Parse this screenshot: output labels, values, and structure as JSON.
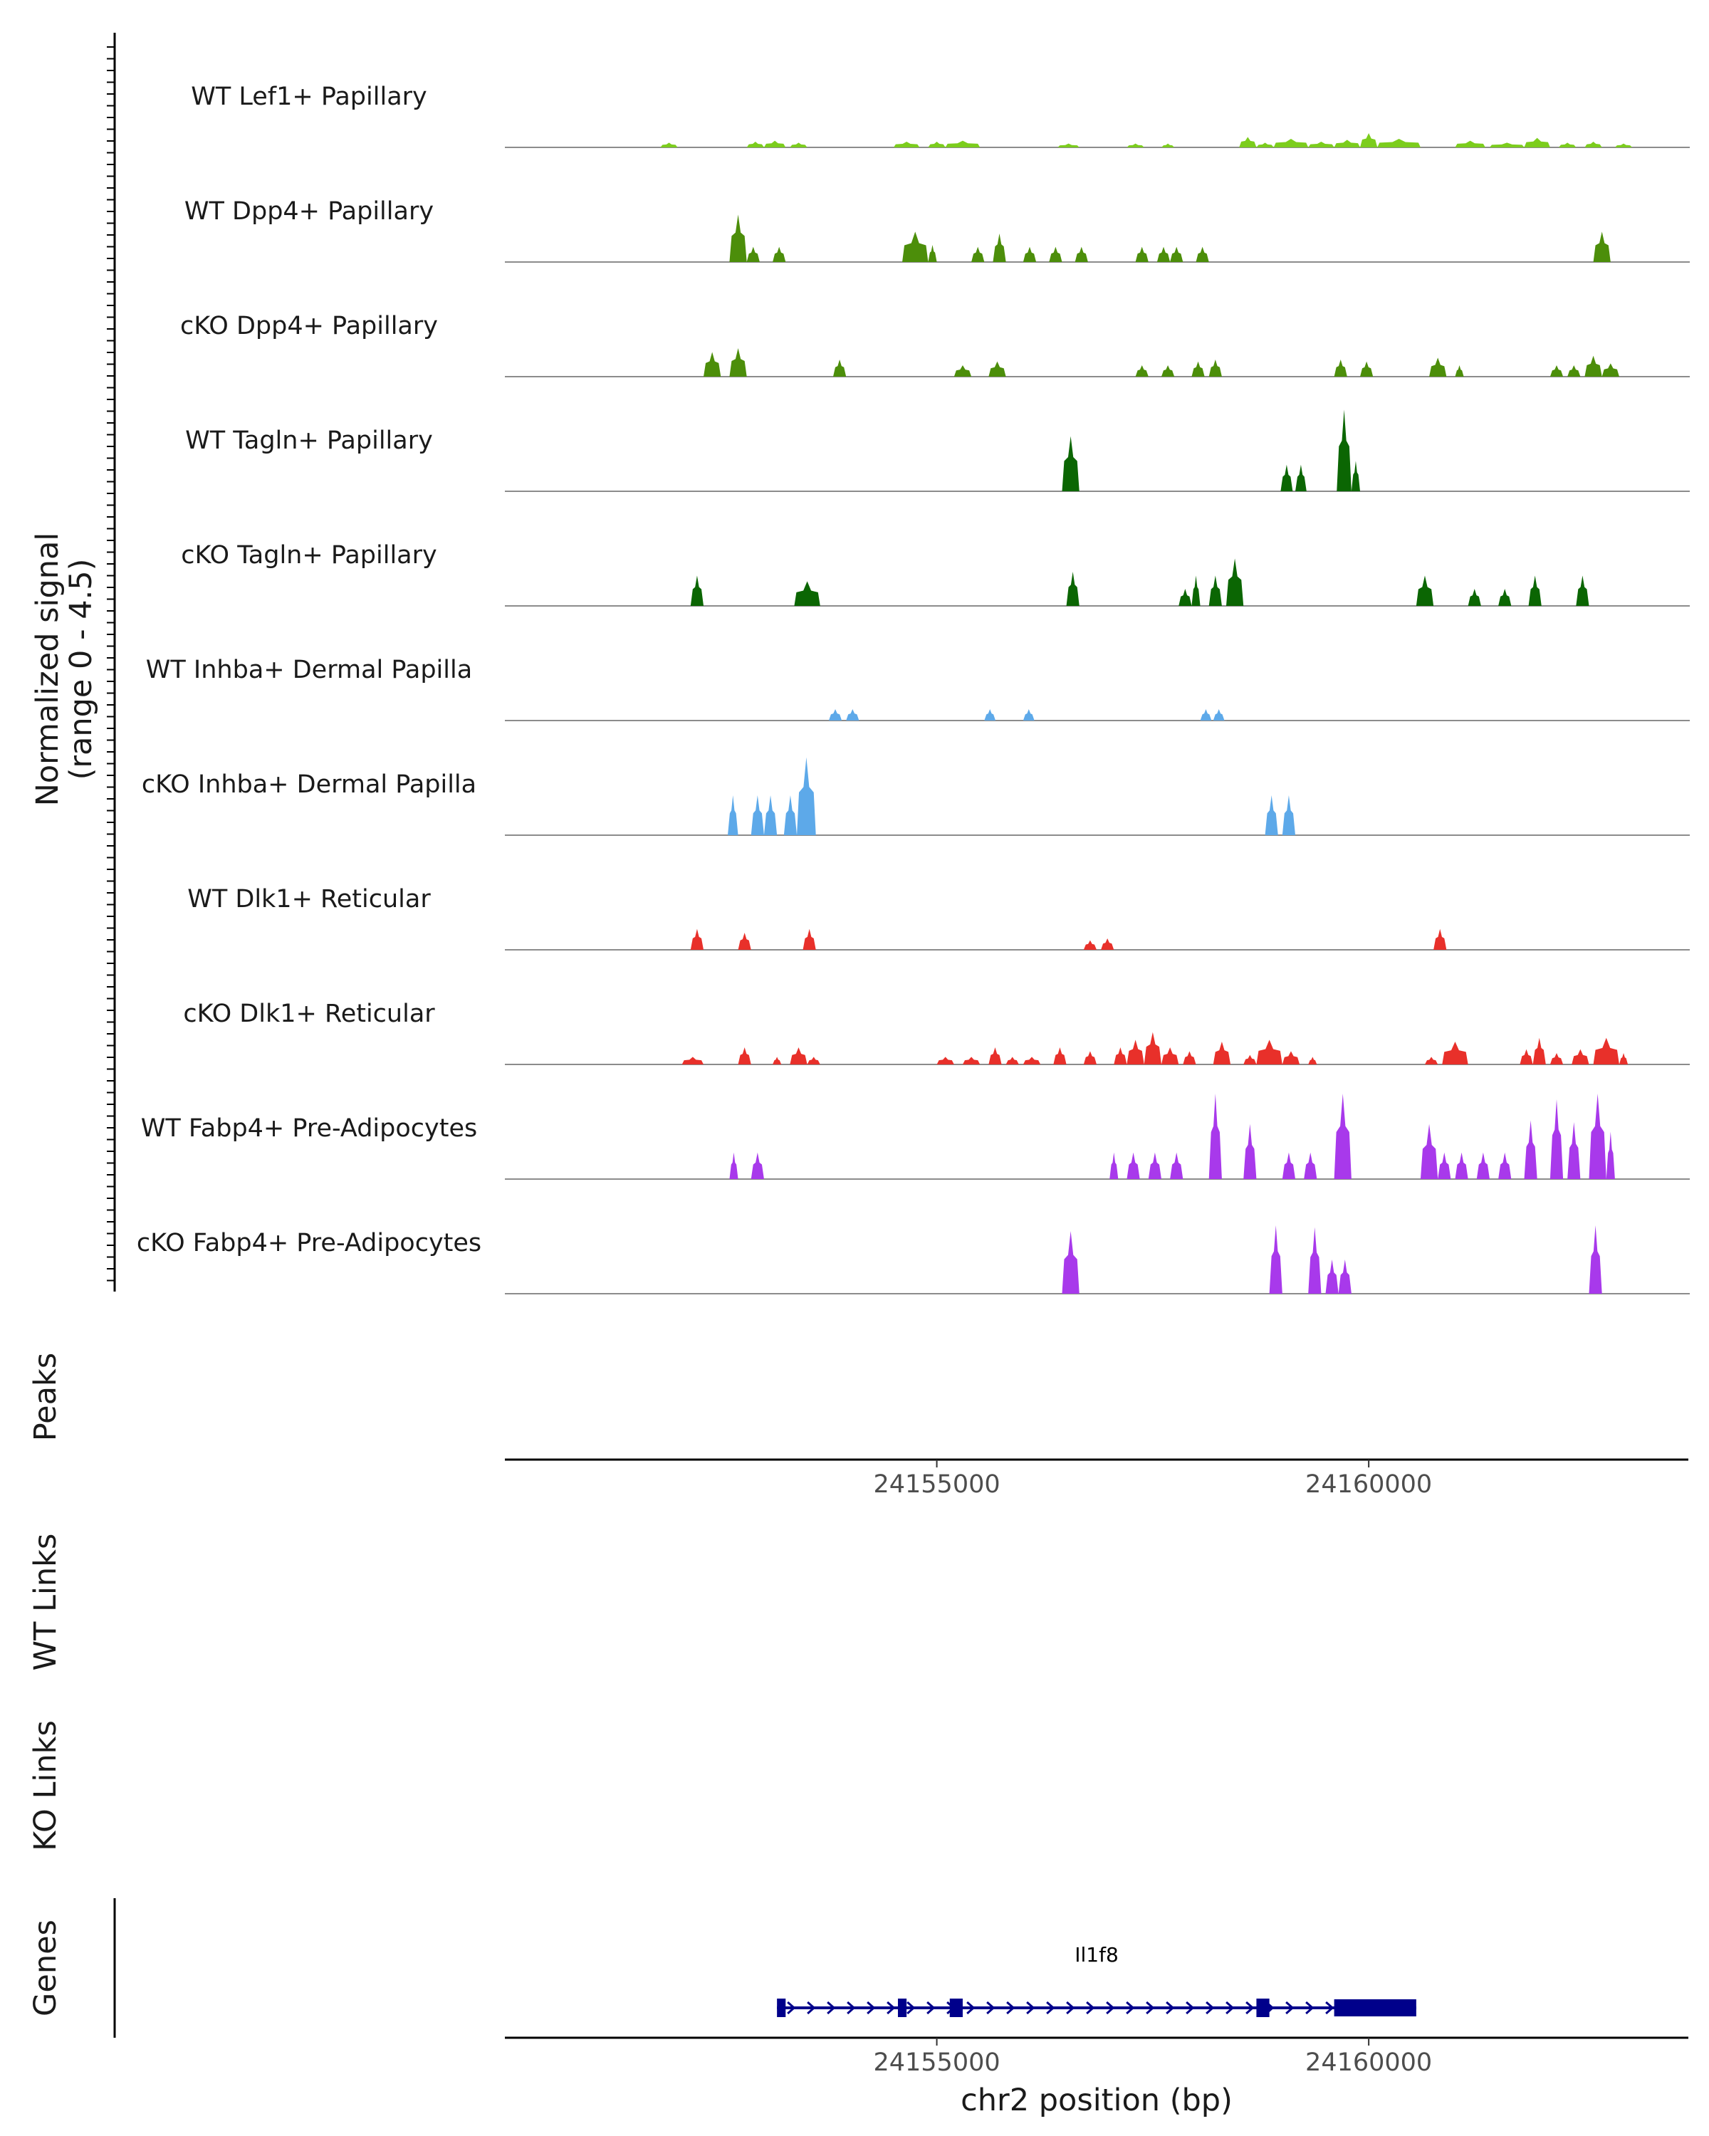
{
  "chart_data": {
    "type": "area",
    "chromosome": "chr2",
    "xlabel": "chr2 position (bp)",
    "x_range": [
      24150000,
      24163700
    ],
    "x_ticks": [
      {
        "value": 24155000,
        "label": "24155000"
      },
      {
        "value": 24160000,
        "label": "24160000"
      }
    ],
    "signal_axis": {
      "title_line1": "Normalized signal",
      "title_line2": "(range 0 - 4.5)",
      "ylim": [
        0,
        4.5
      ]
    },
    "panel_labels": {
      "peaks": "Peaks",
      "wt_links": "WT Links",
      "ko_links": "KO Links",
      "genes": "Genes"
    },
    "series": [
      {
        "name": "WT Lef1+ Papillary",
        "color": "#7CCD1D",
        "peaks": [
          [
            24151800,
            24152000,
            0.25
          ],
          [
            24152800,
            24153000,
            0.3
          ],
          [
            24153000,
            24153250,
            0.35
          ],
          [
            24153300,
            24153500,
            0.25
          ],
          [
            24154500,
            24154800,
            0.3
          ],
          [
            24154900,
            24155100,
            0.3
          ],
          [
            24155100,
            24155500,
            0.35
          ],
          [
            24156400,
            24156650,
            0.2
          ],
          [
            24157200,
            24157400,
            0.2
          ],
          [
            24157600,
            24157750,
            0.2
          ],
          [
            24158500,
            24158700,
            0.55
          ],
          [
            24158700,
            24158900,
            0.25
          ],
          [
            24158900,
            24159300,
            0.45
          ],
          [
            24159300,
            24159600,
            0.3
          ],
          [
            24159600,
            24159900,
            0.4
          ],
          [
            24159900,
            24160100,
            0.75
          ],
          [
            24160100,
            24160600,
            0.45
          ],
          [
            24161000,
            24161350,
            0.35
          ],
          [
            24161400,
            24161800,
            0.25
          ],
          [
            24161800,
            24162100,
            0.5
          ],
          [
            24162200,
            24162400,
            0.25
          ],
          [
            24162500,
            24162700,
            0.3
          ],
          [
            24162850,
            24163050,
            0.2
          ]
        ]
      },
      {
        "name": "WT Dpp4+ Papillary",
        "color": "#4C8E0A",
        "peaks": [
          [
            24152600,
            24152800,
            2.5
          ],
          [
            24152800,
            24152950,
            0.8
          ],
          [
            24153100,
            24153250,
            0.8
          ],
          [
            24154600,
            24154900,
            1.6
          ],
          [
            24154900,
            24155000,
            0.9
          ],
          [
            24155400,
            24155550,
            0.8
          ],
          [
            24155650,
            24155800,
            1.5
          ],
          [
            24156000,
            24156150,
            0.8
          ],
          [
            24156300,
            24156450,
            0.8
          ],
          [
            24156600,
            24156750,
            0.8
          ],
          [
            24157300,
            24157450,
            0.8
          ],
          [
            24157550,
            24157700,
            0.8
          ],
          [
            24157700,
            24157850,
            0.8
          ],
          [
            24158000,
            24158150,
            0.8
          ],
          [
            24162600,
            24162800,
            1.6
          ]
        ]
      },
      {
        "name": "cKO Dpp4+ Papillary",
        "color": "#4C8E0A",
        "peaks": [
          [
            24152300,
            24152500,
            1.3
          ],
          [
            24152600,
            24152800,
            1.5
          ],
          [
            24153800,
            24153950,
            0.9
          ],
          [
            24155200,
            24155400,
            0.6
          ],
          [
            24155600,
            24155800,
            0.8
          ],
          [
            24157300,
            24157450,
            0.6
          ],
          [
            24157600,
            24157750,
            0.6
          ],
          [
            24157950,
            24158100,
            0.8
          ],
          [
            24158150,
            24158300,
            0.9
          ],
          [
            24159600,
            24159750,
            0.9
          ],
          [
            24159900,
            24160050,
            0.8
          ],
          [
            24160700,
            24160900,
            1.0
          ],
          [
            24161000,
            24161100,
            0.6
          ],
          [
            24162100,
            24162250,
            0.6
          ],
          [
            24162300,
            24162450,
            0.6
          ],
          [
            24162500,
            24162700,
            1.1
          ],
          [
            24162700,
            24162900,
            0.7
          ]
        ]
      },
      {
        "name": "WT Tagln+ Papillary",
        "color": "#0B6603",
        "peaks": [
          [
            24156450,
            24156650,
            2.9
          ],
          [
            24158980,
            24159120,
            1.4
          ],
          [
            24159150,
            24159280,
            1.4
          ],
          [
            24159630,
            24159800,
            4.3
          ],
          [
            24159800,
            24159900,
            1.6
          ]
        ]
      },
      {
        "name": "cKO Tagln+ Papillary",
        "color": "#0B6603",
        "peaks": [
          [
            24152150,
            24152300,
            1.6
          ],
          [
            24153350,
            24153650,
            1.3
          ],
          [
            24156500,
            24156650,
            1.8
          ],
          [
            24157800,
            24157950,
            0.9
          ],
          [
            24157950,
            24158050,
            1.6
          ],
          [
            24158150,
            24158300,
            1.6
          ],
          [
            24158350,
            24158550,
            2.5
          ],
          [
            24160550,
            24160750,
            1.6
          ],
          [
            24161150,
            24161300,
            0.9
          ],
          [
            24161500,
            24161650,
            0.9
          ],
          [
            24161850,
            24162000,
            1.6
          ],
          [
            24162400,
            24162550,
            1.6
          ]
        ]
      },
      {
        "name": "WT Inhba+ Dermal Papilla",
        "color": "#5DA9E9",
        "peaks": [
          [
            24153750,
            24153900,
            0.6
          ],
          [
            24153950,
            24154100,
            0.6
          ],
          [
            24155550,
            24155680,
            0.6
          ],
          [
            24156000,
            24156130,
            0.6
          ],
          [
            24158050,
            24158180,
            0.6
          ],
          [
            24158200,
            24158330,
            0.6
          ]
        ]
      },
      {
        "name": "cKO Inhba+ Dermal Papilla",
        "color": "#5DA9E9",
        "peaks": [
          [
            24152580,
            24152700,
            2.1
          ],
          [
            24152850,
            24153000,
            2.1
          ],
          [
            24153000,
            24153150,
            2.1
          ],
          [
            24153230,
            24153380,
            2.1
          ],
          [
            24153380,
            24153600,
            4.1
          ],
          [
            24158800,
            24158950,
            2.1
          ],
          [
            24159000,
            24159150,
            2.1
          ]
        ]
      },
      {
        "name": "WT Dlk1+ Reticular",
        "color": "#E8302A",
        "peaks": [
          [
            24152150,
            24152300,
            1.1
          ],
          [
            24152700,
            24152850,
            0.9
          ],
          [
            24153450,
            24153600,
            1.1
          ],
          [
            24156700,
            24156850,
            0.5
          ],
          [
            24156900,
            24157050,
            0.6
          ],
          [
            24160750,
            24160900,
            1.1
          ]
        ]
      },
      {
        "name": "cKO Dlk1+ Reticular",
        "color": "#E8302A",
        "peaks": [
          [
            24152050,
            24152300,
            0.4
          ],
          [
            24152700,
            24152850,
            0.9
          ],
          [
            24153100,
            24153200,
            0.4
          ],
          [
            24153300,
            24153500,
            0.9
          ],
          [
            24153500,
            24153650,
            0.4
          ],
          [
            24155000,
            24155200,
            0.4
          ],
          [
            24155300,
            24155500,
            0.4
          ],
          [
            24155600,
            24155750,
            0.9
          ],
          [
            24155800,
            24155950,
            0.4
          ],
          [
            24156000,
            24156200,
            0.4
          ],
          [
            24156350,
            24156500,
            0.9
          ],
          [
            24156700,
            24156850,
            0.7
          ],
          [
            24157050,
            24157200,
            0.9
          ],
          [
            24157200,
            24157400,
            1.3
          ],
          [
            24157400,
            24157600,
            1.7
          ],
          [
            24157600,
            24157800,
            0.9
          ],
          [
            24157850,
            24158000,
            0.7
          ],
          [
            24158200,
            24158400,
            1.2
          ],
          [
            24158550,
            24158700,
            0.5
          ],
          [
            24158700,
            24159000,
            1.3
          ],
          [
            24159000,
            24159200,
            0.7
          ],
          [
            24159300,
            24159400,
            0.4
          ],
          [
            24160650,
            24160800,
            0.4
          ],
          [
            24160850,
            24161150,
            1.2
          ],
          [
            24161750,
            24161900,
            0.8
          ],
          [
            24161900,
            24162050,
            1.4
          ],
          [
            24162100,
            24162250,
            0.6
          ],
          [
            24162350,
            24162550,
            0.8
          ],
          [
            24162600,
            24162900,
            1.4
          ],
          [
            24162900,
            24163000,
            0.6
          ]
        ]
      },
      {
        "name": "WT Fabp4+ Pre-Adipocytes",
        "color": "#A839EB",
        "peaks": [
          [
            24152600,
            24152700,
            1.4
          ],
          [
            24152850,
            24153000,
            1.4
          ],
          [
            24157000,
            24157100,
            1.4
          ],
          [
            24157200,
            24157350,
            1.4
          ],
          [
            24157450,
            24157600,
            1.4
          ],
          [
            24157700,
            24157850,
            1.4
          ],
          [
            24158150,
            24158300,
            5.0
          ],
          [
            24158550,
            24158700,
            2.9
          ],
          [
            24159000,
            24159150,
            1.4
          ],
          [
            24159250,
            24159400,
            1.4
          ],
          [
            24159600,
            24159800,
            5.1
          ],
          [
            24160600,
            24160800,
            2.9
          ],
          [
            24160800,
            24160950,
            1.4
          ],
          [
            24161000,
            24161150,
            1.4
          ],
          [
            24161250,
            24161400,
            1.4
          ],
          [
            24161500,
            24161650,
            1.4
          ],
          [
            24161800,
            24161950,
            3.1
          ],
          [
            24162100,
            24162250,
            4.2
          ],
          [
            24162300,
            24162450,
            3.0
          ],
          [
            24162550,
            24162750,
            5.0
          ],
          [
            24162750,
            24162850,
            2.5
          ]
        ]
      },
      {
        "name": "cKO Fabp4+ Pre-Adipocytes",
        "color": "#A839EB",
        "peaks": [
          [
            24156450,
            24156650,
            3.3
          ],
          [
            24158850,
            24159000,
            3.6
          ],
          [
            24159300,
            24159450,
            3.5
          ],
          [
            24159500,
            24159650,
            1.8
          ],
          [
            24159650,
            24159800,
            1.8
          ],
          [
            24162550,
            24162700,
            3.6
          ]
        ]
      }
    ],
    "gene": {
      "name": "Il1f8",
      "color": "#00008B",
      "start": 24153150,
      "end": 24160550,
      "strand": "+",
      "exons": [
        [
          24153150,
          24153250
        ],
        [
          24154550,
          24154650
        ],
        [
          24155150,
          24155300
        ],
        [
          24158700,
          24158850
        ],
        [
          24159600,
          24160550
        ]
      ]
    }
  }
}
